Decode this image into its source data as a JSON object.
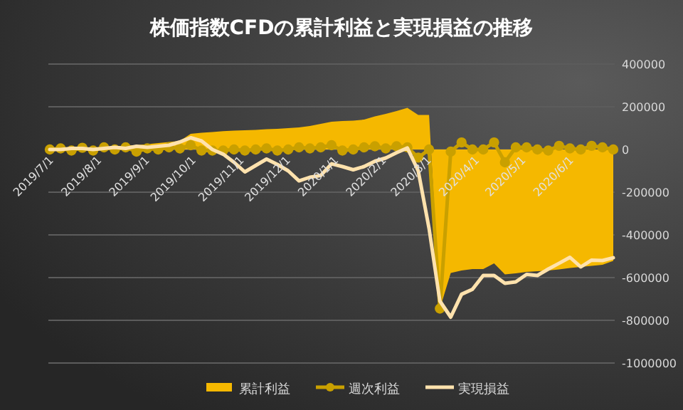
{
  "chart_data": {
    "type": "line",
    "title": "株価指数CFDの累計利益と実現損益の推移",
    "x": [
      "2019-07-01",
      "2019-07-08",
      "2019-07-15",
      "2019-07-22",
      "2019-07-29",
      "2019-08-05",
      "2019-08-12",
      "2019-08-19",
      "2019-08-26",
      "2019-09-02",
      "2019-09-09",
      "2019-09-16",
      "2019-09-23",
      "2019-09-30",
      "2019-10-07",
      "2019-10-14",
      "2019-10-21",
      "2019-10-28",
      "2019-11-04",
      "2019-11-11",
      "2019-11-18",
      "2019-11-25",
      "2019-12-02",
      "2019-12-09",
      "2019-12-16",
      "2019-12-23",
      "2019-12-30",
      "2020-01-06",
      "2020-01-13",
      "2020-01-20",
      "2020-01-27",
      "2020-02-03",
      "2020-02-10",
      "2020-02-17",
      "2020-02-24",
      "2020-03-02",
      "2020-03-09",
      "2020-03-16",
      "2020-03-23",
      "2020-03-30",
      "2020-04-06",
      "2020-04-13",
      "2020-04-20",
      "2020-04-27",
      "2020-05-04",
      "2020-05-11",
      "2020-05-18",
      "2020-05-25",
      "2020-06-01",
      "2020-06-08",
      "2020-06-15",
      "2020-06-22",
      "2020-06-29"
    ],
    "series": [
      {
        "name": "累計利益",
        "type": "area",
        "color": "#f5b800",
        "values": [
          0,
          3000,
          5000,
          8000,
          10000,
          12000,
          15000,
          18000,
          20000,
          25000,
          30000,
          35000,
          40000,
          73000,
          78000,
          82000,
          86000,
          88000,
          90000,
          92000,
          95000,
          97000,
          100000,
          103000,
          110000,
          120000,
          130000,
          133000,
          135000,
          140000,
          155000,
          167000,
          180000,
          195000,
          162000,
          162000,
          -745000,
          -578000,
          -567000,
          -560000,
          -560000,
          -533000,
          -585000,
          -580000,
          -573000,
          -570000,
          -567000,
          -562000,
          -555000,
          -550000,
          -545000,
          -540000,
          -522000
        ]
      },
      {
        "name": "週次利益",
        "type": "line",
        "marker": "circle",
        "color": "#c9a000",
        "values": [
          0,
          5000,
          -5000,
          8000,
          -5000,
          10000,
          0,
          10000,
          -10000,
          5000,
          0,
          10000,
          5000,
          20000,
          -5000,
          -5000,
          -5000,
          0,
          -5000,
          0,
          5000,
          -5000,
          0,
          10000,
          5000,
          10000,
          20000,
          -5000,
          0,
          10000,
          15000,
          5000,
          15000,
          10000,
          -38000,
          0,
          -745000,
          -10000,
          33000,
          0,
          0,
          33000,
          -60000,
          10000,
          10000,
          0,
          -5000,
          17000,
          5000,
          0,
          17000,
          10000,
          0
        ]
      },
      {
        "name": "実現損益",
        "color": "#ffe2ad",
        "values": [
          0,
          0,
          5000,
          5000,
          0,
          5000,
          10000,
          5000,
          15000,
          10000,
          15000,
          20000,
          35000,
          55000,
          40000,
          0,
          -22000,
          -60000,
          -105000,
          -75000,
          -45000,
          -70000,
          -100000,
          -147000,
          -130000,
          -122000,
          -67000,
          -80000,
          -95000,
          -80000,
          -55000,
          -40000,
          -15000,
          7000,
          -100000,
          -370000,
          -710000,
          -785000,
          -678000,
          -655000,
          -590000,
          -590000,
          -627000,
          -620000,
          -585000,
          -590000,
          -560000,
          -533000,
          -505000,
          -550000,
          -518000,
          -520000,
          -507000
        ]
      }
    ],
    "xlim": [
      "2019-07-01",
      "2020-06-29"
    ],
    "xticks": [
      {
        "value": "2019-07-01",
        "label": "2019/7/1"
      },
      {
        "value": "2019-08-01",
        "label": "2019/8/1"
      },
      {
        "value": "2019-09-01",
        "label": "2019/9/1"
      },
      {
        "value": "2019-10-01",
        "label": "2019/10/1"
      },
      {
        "value": "2019-11-01",
        "label": "2019/11/1"
      },
      {
        "value": "2019-12-01",
        "label": "2019/12/1"
      },
      {
        "value": "2020-01-01",
        "label": "2020/1/1"
      },
      {
        "value": "2020-02-01",
        "label": "2020/2/1"
      },
      {
        "value": "2020-03-01",
        "label": "2020/3/1"
      },
      {
        "value": "2020-04-01",
        "label": "2020/4/1"
      },
      {
        "value": "2020-05-01",
        "label": "2020/5/1"
      },
      {
        "value": "2020-06-01",
        "label": "2020/6/1"
      }
    ],
    "ylim": [
      -1000000,
      400000
    ],
    "yticks": [
      -1000000,
      -800000,
      -600000,
      -400000,
      -200000,
      0,
      200000,
      400000
    ],
    "grid": "y",
    "legend": "bottom"
  }
}
